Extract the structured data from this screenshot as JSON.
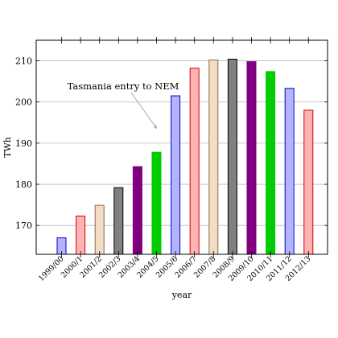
{
  "chart_data": {
    "type": "bar",
    "xlabel": "year",
    "ylabel": "TWh",
    "ylim": [
      163,
      215
    ],
    "yticks": [
      170,
      180,
      190,
      200,
      210
    ],
    "grid": "horizontal",
    "categories": [
      "1999/00",
      "2000/1",
      "2001/2",
      "2002/3",
      "2003/4",
      "2004/5",
      "2005/6",
      "2006/7",
      "2007/8",
      "2008/9",
      "2009/10",
      "2010/11",
      "2011/12",
      "2012/13"
    ],
    "values": [
      167.0,
      172.3,
      174.9,
      179.2,
      184.3,
      187.8,
      201.5,
      208.2,
      210.2,
      210.4,
      209.8,
      207.4,
      203.3,
      198.0
    ],
    "bar_fills": [
      "#b3b3ff",
      "#ffb3b3",
      "#f2dcc4",
      "#808080",
      "#800080",
      "#00cc00",
      "#b3b3ff",
      "#ffb3b3",
      "#f2dcc4",
      "#808080",
      "#800080",
      "#00cc00",
      "#b3b3ff",
      "#ffb3b3"
    ],
    "bar_strokes": [
      "#0000cc",
      "#cc0000",
      "#8c6a4a",
      "#000000",
      "#800080",
      "#00cc00",
      "#0000cc",
      "#cc0000",
      "#8c6a4a",
      "#000000",
      "#800080",
      "#00cc00",
      "#0000cc",
      "#cc0000"
    ],
    "annotations": [
      {
        "text": "Tasmania entry to NEM",
        "target_category": "2004/5",
        "target_value": 190.3
      }
    ]
  }
}
